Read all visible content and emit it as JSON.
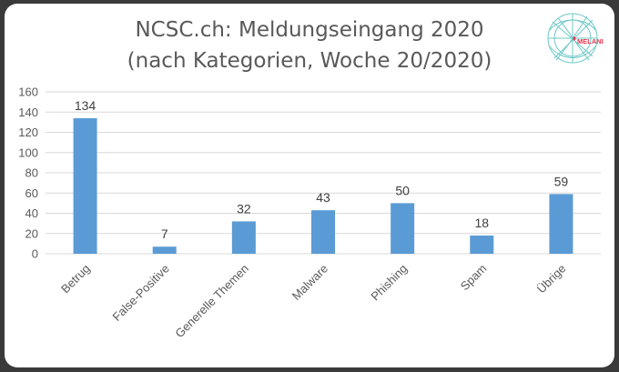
{
  "colors": {
    "bar": "#5b9bd5",
    "grid": "#d9d9d9",
    "text": "#595959",
    "logo_accent": "#e8384f",
    "logo_teal": "#3fb7b7"
  },
  "logo": {
    "text": "MELANI",
    "icon": "melani-logo-icon"
  },
  "chart_data": {
    "type": "bar",
    "title": "NCSC.ch: Meldungseingang 2020",
    "subtitle": "(nach Kategorien, Woche 20/2020)",
    "categories": [
      "Betrug",
      "False-Positive",
      "Generelle Themen",
      "Malware",
      "Phishing",
      "Spam",
      "Übrige"
    ],
    "values": [
      134,
      7,
      32,
      43,
      50,
      18,
      59
    ],
    "yticks": [
      0,
      20,
      40,
      60,
      80,
      100,
      120,
      140,
      160
    ],
    "ylim": [
      0,
      160
    ],
    "grid": true,
    "legend": "none"
  }
}
